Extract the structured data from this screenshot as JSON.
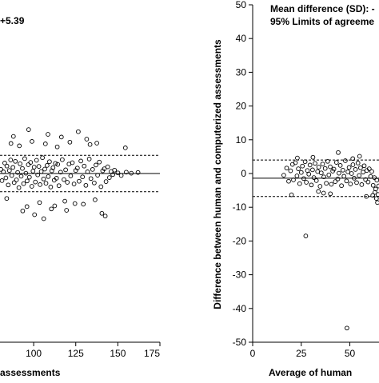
{
  "chart_data": [
    {
      "type": "scatter",
      "xlabel": "assessments",
      "ylabel": "",
      "xlim": [
        80,
        175
      ],
      "ylim": [
        -50,
        50
      ],
      "x_ticks": [
        100,
        125,
        150,
        175
      ],
      "annotation": "+5.39",
      "mean_line": 0.0,
      "upper_loa": 5.39,
      "lower_loa": -5.39,
      "points": [
        [
          80.5,
          1.2
        ],
        [
          81.2,
          -2.1
        ],
        [
          82.0,
          0.5
        ],
        [
          82.8,
          3.1
        ],
        [
          83.5,
          -1.3
        ],
        [
          84.1,
          2.2
        ],
        [
          84.9,
          -3.4
        ],
        [
          85.6,
          0.9
        ],
        [
          86.3,
          4.0
        ],
        [
          87.0,
          -0.6
        ],
        [
          87.7,
          1.8
        ],
        [
          88.4,
          -2.7
        ],
        [
          89.1,
          3.6
        ],
        [
          89.8,
          -1.9
        ],
        [
          90.5,
          0.3
        ],
        [
          91.2,
          -4.2
        ],
        [
          91.9,
          2.9
        ],
        [
          92.6,
          -0.8
        ],
        [
          93.3,
          1.5
        ],
        [
          94.0,
          -3.0
        ],
        [
          94.7,
          4.4
        ],
        [
          95.4,
          0.1
        ],
        [
          96.1,
          -2.2
        ],
        [
          96.8,
          2.6
        ],
        [
          97.5,
          -1.1
        ],
        [
          98.2,
          3.3
        ],
        [
          98.9,
          -3.8
        ],
        [
          99.6,
          0.7
        ],
        [
          100.3,
          1.9
        ],
        [
          101.0,
          -2.5
        ],
        [
          101.7,
          3.9
        ],
        [
          102.4,
          -0.4
        ],
        [
          103.1,
          2.1
        ],
        [
          103.8,
          -3.3
        ],
        [
          104.5,
          0.6
        ],
        [
          105.2,
          4.7
        ],
        [
          105.9,
          -1.6
        ],
        [
          106.6,
          1.3
        ],
        [
          107.3,
          -2.9
        ],
        [
          108.0,
          2.4
        ],
        [
          108.7,
          -0.9
        ],
        [
          109.4,
          3.5
        ],
        [
          110.1,
          -4.0
        ],
        [
          110.8,
          0.8
        ],
        [
          111.5,
          1.7
        ],
        [
          112.2,
          -2.0
        ],
        [
          112.9,
          3.0
        ],
        [
          113.6,
          -1.4
        ],
        [
          114.3,
          2.7
        ],
        [
          115.0,
          -3.6
        ],
        [
          116.0,
          0.4
        ],
        [
          117.0,
          4.1
        ],
        [
          118.0,
          -1.8
        ],
        [
          119.0,
          1.1
        ],
        [
          120.0,
          -2.6
        ],
        [
          121.0,
          2.8
        ],
        [
          122.0,
          -0.7
        ],
        [
          123.0,
          3.2
        ],
        [
          124.0,
          -3.1
        ],
        [
          125.0,
          0.9
        ],
        [
          126.0,
          1.6
        ],
        [
          127.0,
          -2.3
        ],
        [
          128.0,
          3.7
        ],
        [
          129.0,
          -1.0
        ],
        [
          130.0,
          2.2
        ],
        [
          131.0,
          -3.5
        ],
        [
          132.0,
          0.5
        ],
        [
          133.0,
          4.3
        ],
        [
          134.0,
          -1.5
        ],
        [
          135.0,
          1.2
        ],
        [
          136.0,
          -2.8
        ],
        [
          137.0,
          2.5
        ],
        [
          138.0,
          -0.5
        ],
        [
          139.0,
          3.4
        ],
        [
          140.0,
          -3.9
        ],
        [
          141.0,
          0.8
        ],
        [
          142.0,
          1.4
        ],
        [
          143.0,
          -2.4
        ],
        [
          144.0,
          2.0
        ],
        [
          145.0,
          -1.2
        ],
        [
          146.0,
          0.6
        ],
        [
          147.0,
          -0.3
        ],
        [
          148.0,
          1.0
        ],
        [
          150.0,
          0.2
        ],
        [
          152.0,
          -0.6
        ],
        [
          155.0,
          0.4
        ],
        [
          158.0,
          0.1
        ],
        [
          162.0,
          0.3
        ],
        [
          88.0,
          11.0
        ],
        [
          91.5,
          8.2
        ],
        [
          96.0,
          -9.8
        ],
        [
          99.0,
          9.5
        ],
        [
          103.5,
          -8.6
        ],
        [
          107.0,
          8.8
        ],
        [
          110.5,
          -10.5
        ],
        [
          114.0,
          7.9
        ],
        [
          118.5,
          -8.2
        ],
        [
          121.5,
          9.3
        ],
        [
          126.5,
          12.4
        ],
        [
          129.5,
          -9.1
        ],
        [
          133.5,
          8.6
        ],
        [
          136.5,
          -7.8
        ],
        [
          140.5,
          -11.8
        ],
        [
          142.5,
          -12.6
        ],
        [
          131.5,
          10.2
        ],
        [
          154.5,
          7.6
        ],
        [
          100.5,
          -12.2
        ],
        [
          106.0,
          -13.4
        ],
        [
          97.0,
          13.0
        ],
        [
          112.5,
          -9.6
        ],
        [
          116.5,
          10.8
        ],
        [
          124.5,
          -8.9
        ],
        [
          84.0,
          -7.4
        ],
        [
          86.5,
          8.9
        ],
        [
          93.5,
          -11.1
        ],
        [
          108.5,
          11.6
        ],
        [
          119.5,
          -10.9
        ],
        [
          137.5,
          9.0
        ]
      ]
    },
    {
      "type": "scatter",
      "title": "",
      "xlabel": "Average of human",
      "ylabel": "Difference between human and computerized assessments",
      "xlim": [
        0,
        65
      ],
      "ylim": [
        -50,
        50
      ],
      "x_ticks": [
        0,
        25,
        50
      ],
      "y_ticks": [
        50,
        40,
        30,
        20,
        10,
        0,
        -10,
        -20,
        -30,
        -40,
        -50
      ],
      "annotation_line1": "Mean difference (SD): -",
      "annotation_line2": "95% Limits of agreeme",
      "mean_line": -1.4,
      "upper_loa": 4.0,
      "lower_loa": -6.8,
      "points": [
        [
          16.0,
          -0.5
        ],
        [
          17.5,
          1.6
        ],
        [
          18.5,
          -2.3
        ],
        [
          19.5,
          0.8
        ],
        [
          20.5,
          2.7
        ],
        [
          21.0,
          -1.9
        ],
        [
          22.0,
          3.2
        ],
        [
          22.8,
          -0.7
        ],
        [
          23.5,
          1.4
        ],
        [
          24.2,
          -3.0
        ],
        [
          25.0,
          0.3
        ],
        [
          25.6,
          2.2
        ],
        [
          26.3,
          -1.5
        ],
        [
          27.0,
          3.5
        ],
        [
          27.6,
          -2.6
        ],
        [
          28.2,
          0.9
        ],
        [
          28.9,
          -0.2
        ],
        [
          29.5,
          2.5
        ],
        [
          30.2,
          -3.4
        ],
        [
          30.8,
          1.1
        ],
        [
          31.5,
          -1.2
        ],
        [
          32.1,
          3.0
        ],
        [
          32.8,
          -2.1
        ],
        [
          33.4,
          0.6
        ],
        [
          34.0,
          1.9
        ],
        [
          34.7,
          -3.8
        ],
        [
          35.3,
          0.2
        ],
        [
          36.0,
          2.8
        ],
        [
          36.6,
          -1.0
        ],
        [
          37.3,
          1.5
        ],
        [
          37.9,
          -2.9
        ],
        [
          38.6,
          3.6
        ],
        [
          39.2,
          -0.4
        ],
        [
          39.9,
          2.0
        ],
        [
          40.5,
          -3.2
        ],
        [
          41.2,
          0.7
        ],
        [
          41.8,
          1.3
        ],
        [
          42.5,
          -2.4
        ],
        [
          43.1,
          3.3
        ],
        [
          43.8,
          -1.6
        ],
        [
          44.4,
          0.1
        ],
        [
          45.1,
          2.4
        ],
        [
          45.7,
          -3.6
        ],
        [
          46.4,
          1.0
        ],
        [
          47.0,
          -0.8
        ],
        [
          47.7,
          3.8
        ],
        [
          48.3,
          -2.2
        ],
        [
          49.0,
          0.5
        ],
        [
          49.6,
          1.8
        ],
        [
          50.3,
          -3.1
        ],
        [
          50.9,
          0.0
        ],
        [
          51.6,
          2.6
        ],
        [
          52.2,
          -1.4
        ],
        [
          52.9,
          1.2
        ],
        [
          53.5,
          -2.7
        ],
        [
          54.2,
          3.1
        ],
        [
          54.8,
          -0.6
        ],
        [
          55.5,
          1.7
        ],
        [
          56.1,
          -3.3
        ],
        [
          56.8,
          0.4
        ],
        [
          57.4,
          2.3
        ],
        [
          58.1,
          -1.8
        ],
        [
          58.7,
          0.9
        ],
        [
          59.4,
          -2.5
        ],
        [
          60.0,
          1.4
        ],
        [
          60.7,
          -0.9
        ],
        [
          61.3,
          0.6
        ],
        [
          62.0,
          -3.5
        ],
        [
          62.6,
          -1.2
        ],
        [
          63.3,
          -4.6
        ],
        [
          63.9,
          -2.0
        ],
        [
          64.5,
          -6.2
        ],
        [
          64.8,
          -3.7
        ],
        [
          63.7,
          -7.4
        ],
        [
          64.2,
          -8.6
        ],
        [
          62.9,
          -5.6
        ],
        [
          61.8,
          -6.5
        ],
        [
          44.0,
          6.2
        ],
        [
          36.5,
          -5.8
        ],
        [
          27.3,
          -18.5
        ],
        [
          48.5,
          -45.8
        ],
        [
          20.0,
          -6.3
        ],
        [
          55.0,
          5.1
        ],
        [
          40.0,
          -6.0
        ],
        [
          31.0,
          4.8
        ],
        [
          58.5,
          -6.8
        ],
        [
          23.0,
          4.6
        ],
        [
          51.5,
          4.4
        ],
        [
          33.8,
          -5.3
        ]
      ]
    }
  ]
}
